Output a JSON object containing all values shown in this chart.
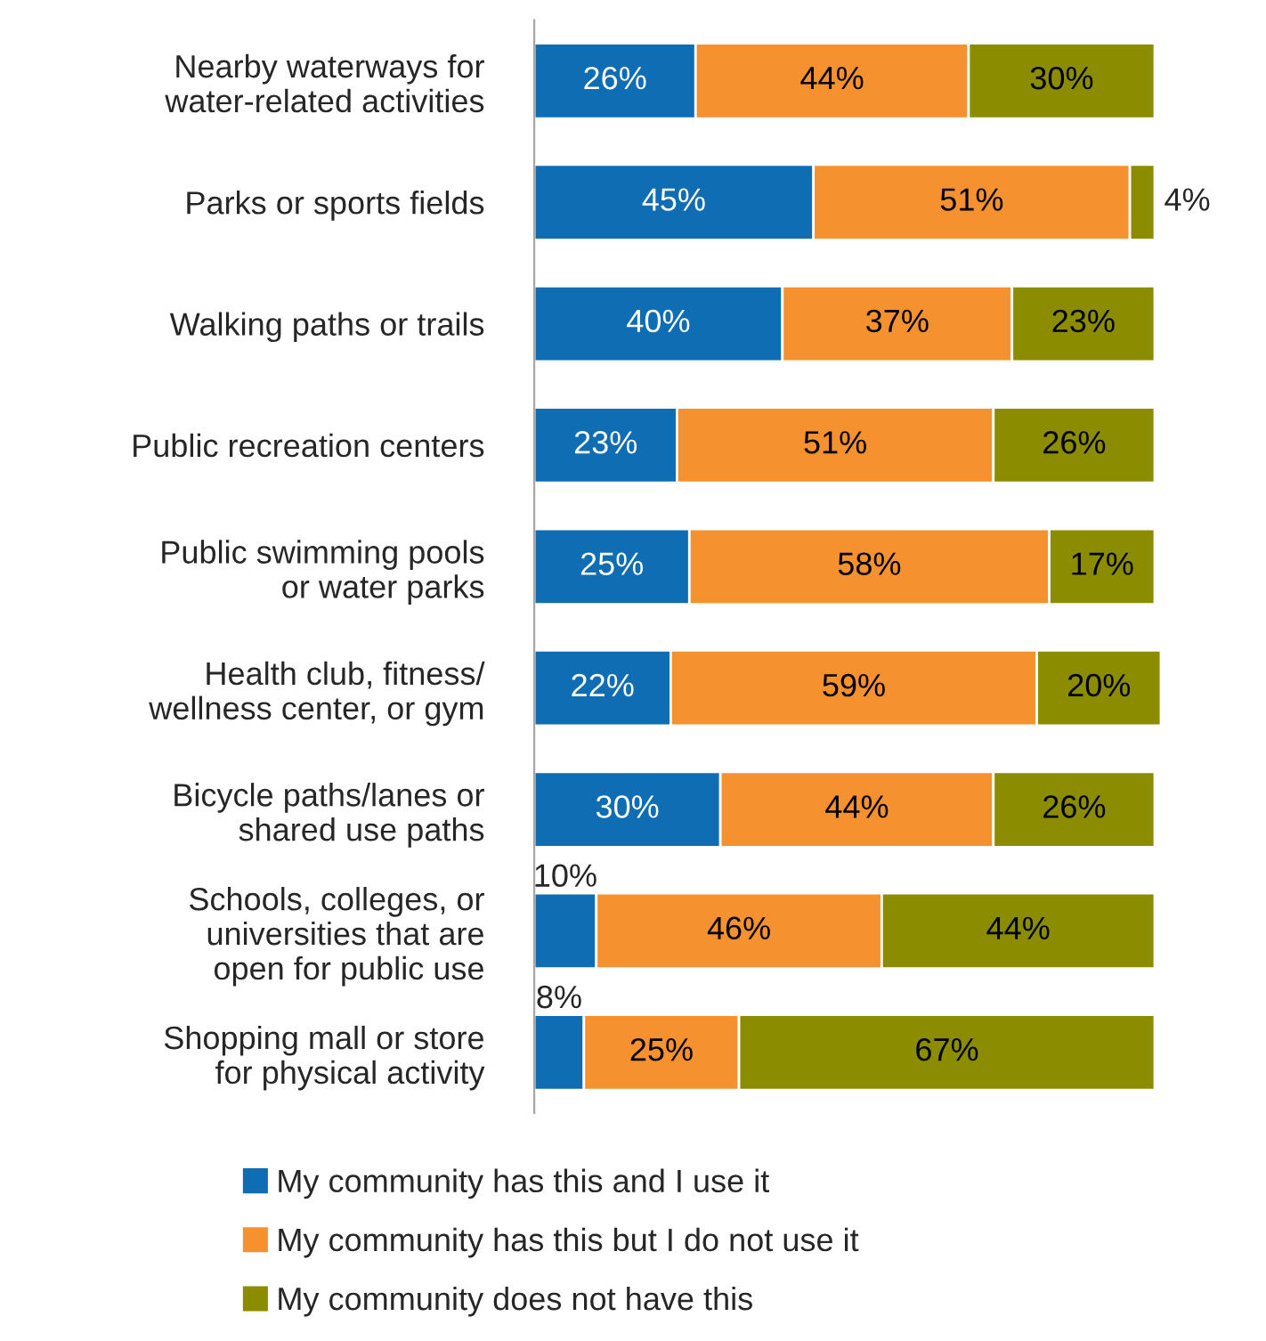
{
  "chart_data": {
    "type": "bar",
    "orientation": "horizontal",
    "stacked": true,
    "legend": "bottom",
    "categories": [
      "Nearby waterways for\nwater-related activities",
      "Parks or sports fields",
      "Walking paths or trails",
      "Public recreation centers",
      "Public swimming pools\nor water parks",
      "Health club, fitness/\nwellness center, or gym",
      "Bicycle paths/lanes or\nshared use paths",
      "Schools, colleges, or\nuniversities that are\nopen for public use",
      "Shopping mall or store\nfor physical activity"
    ],
    "series": [
      {
        "name": "My community has this and I use it",
        "color": "#0f6db3",
        "values": [
          26,
          45,
          40,
          23,
          25,
          22,
          30,
          10,
          8
        ],
        "value_labels": [
          "26%",
          "45%",
          "40%",
          "23%",
          "25%",
          "22%",
          "30%",
          "10%",
          "8%"
        ]
      },
      {
        "name": "My community has this but I do not use it",
        "color": "#f5922f",
        "values": [
          44,
          51,
          37,
          51,
          58,
          59,
          44,
          46,
          25
        ],
        "value_labels": [
          "44%",
          "51%",
          "37%",
          "51%",
          "58%",
          "59%",
          "44%",
          "46%",
          "25%"
        ]
      },
      {
        "name": "My community does not have this",
        "color": "#8c8c00",
        "values": [
          30,
          4,
          23,
          26,
          17,
          20,
          26,
          44,
          67
        ],
        "value_labels": [
          "30%",
          "4%",
          "23%",
          "26%",
          "17%",
          "20%",
          "26%",
          "44%",
          "67%"
        ]
      }
    ]
  }
}
